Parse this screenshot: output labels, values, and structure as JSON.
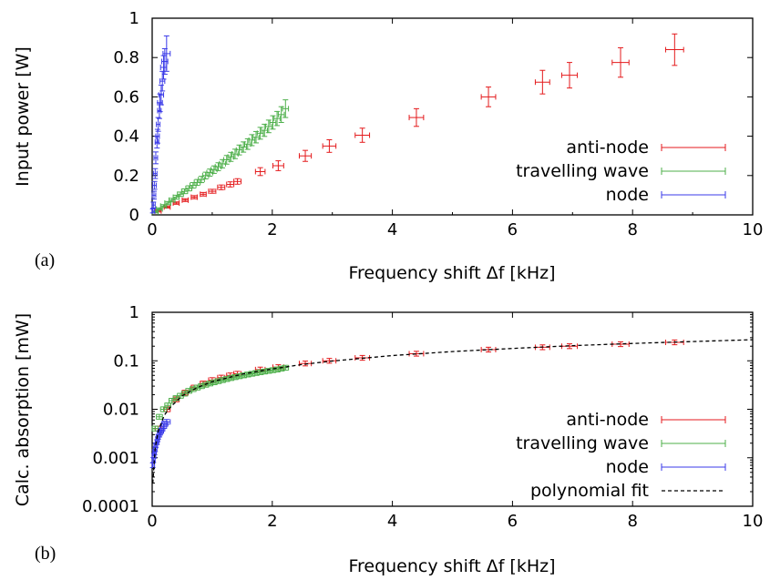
{
  "chart_data": [
    {
      "type": "scatter",
      "panel_label": "(a)",
      "xlabel": "Frequency shift Δf [kHz]",
      "ylabel": "Input power [W]",
      "xlim": [
        0,
        10
      ],
      "ylim": [
        0,
        1
      ],
      "yscale": "linear",
      "xticks": [
        "0",
        "2",
        "4",
        "6",
        "8",
        "10"
      ],
      "yticks": [
        "0",
        "0.2",
        "0.4",
        "0.6",
        "0.8",
        "1"
      ],
      "grid": false,
      "legend_position": "right",
      "series": [
        {
          "name": "anti-node",
          "color": "#e41a1c",
          "marker": "errorbar",
          "x": [
            0.1,
            0.25,
            0.4,
            0.55,
            0.7,
            0.85,
            1.0,
            1.15,
            1.3,
            1.42,
            1.8,
            2.1,
            2.55,
            2.95,
            3.5,
            4.4,
            5.6,
            6.5,
            6.95,
            7.8,
            8.7
          ],
          "y": [
            0.02,
            0.04,
            0.06,
            0.075,
            0.09,
            0.105,
            0.12,
            0.14,
            0.155,
            0.17,
            0.22,
            0.25,
            0.3,
            0.35,
            0.405,
            0.495,
            0.6,
            0.675,
            0.71,
            0.775,
            0.84
          ],
          "xerr": [
            0.05,
            0.05,
            0.05,
            0.05,
            0.05,
            0.05,
            0.06,
            0.06,
            0.06,
            0.06,
            0.08,
            0.09,
            0.1,
            0.11,
            0.12,
            0.12,
            0.12,
            0.12,
            0.13,
            0.14,
            0.15
          ],
          "yerr": [
            0.005,
            0.005,
            0.006,
            0.007,
            0.008,
            0.009,
            0.01,
            0.012,
            0.013,
            0.014,
            0.02,
            0.025,
            0.028,
            0.032,
            0.036,
            0.045,
            0.05,
            0.06,
            0.065,
            0.075,
            0.08
          ]
        },
        {
          "name": "travelling wave",
          "color": "#4daf4a",
          "marker": "errorbar",
          "x": [
            0.05,
            0.12,
            0.19,
            0.26,
            0.33,
            0.4,
            0.47,
            0.54,
            0.61,
            0.68,
            0.75,
            0.82,
            0.89,
            0.96,
            1.03,
            1.1,
            1.17,
            1.24,
            1.31,
            1.38,
            1.45,
            1.52,
            1.59,
            1.66,
            1.73,
            1.8,
            1.87,
            1.94,
            2.01,
            2.08,
            2.15,
            2.22
          ],
          "y": [
            0.015,
            0.03,
            0.045,
            0.06,
            0.075,
            0.09,
            0.105,
            0.12,
            0.135,
            0.15,
            0.165,
            0.18,
            0.2,
            0.215,
            0.23,
            0.245,
            0.26,
            0.28,
            0.295,
            0.31,
            0.33,
            0.345,
            0.36,
            0.38,
            0.395,
            0.415,
            0.43,
            0.45,
            0.47,
            0.49,
            0.51,
            0.54
          ],
          "xerr": [
            0.05,
            0.05,
            0.05,
            0.05,
            0.05,
            0.05,
            0.05,
            0.05,
            0.05,
            0.05,
            0.05,
            0.05,
            0.05,
            0.05,
            0.05,
            0.05,
            0.05,
            0.05,
            0.05,
            0.05,
            0.05,
            0.05,
            0.05,
            0.05,
            0.05,
            0.05,
            0.05,
            0.05,
            0.05,
            0.05,
            0.05,
            0.05
          ],
          "yerr": [
            0.005,
            0.006,
            0.007,
            0.008,
            0.009,
            0.01,
            0.011,
            0.012,
            0.013,
            0.014,
            0.015,
            0.016,
            0.017,
            0.018,
            0.019,
            0.02,
            0.021,
            0.022,
            0.023,
            0.024,
            0.025,
            0.026,
            0.027,
            0.028,
            0.029,
            0.03,
            0.031,
            0.032,
            0.034,
            0.036,
            0.04,
            0.045
          ]
        },
        {
          "name": "node",
          "color": "#3a3ae8",
          "marker": "errorbar",
          "x": [
            0.01,
            0.02,
            0.03,
            0.04,
            0.05,
            0.06,
            0.08,
            0.09,
            0.1,
            0.12,
            0.13,
            0.15,
            0.17,
            0.19,
            0.21,
            0.24
          ],
          "y": [
            0.02,
            0.05,
            0.1,
            0.15,
            0.21,
            0.29,
            0.37,
            0.4,
            0.46,
            0.53,
            0.57,
            0.61,
            0.68,
            0.75,
            0.78,
            0.82
          ],
          "xerr": [
            0.03,
            0.03,
            0.03,
            0.03,
            0.03,
            0.03,
            0.03,
            0.03,
            0.03,
            0.03,
            0.04,
            0.04,
            0.04,
            0.05,
            0.05,
            0.06
          ],
          "yerr": [
            0.01,
            0.015,
            0.02,
            0.02,
            0.025,
            0.03,
            0.03,
            0.035,
            0.035,
            0.04,
            0.045,
            0.05,
            0.05,
            0.06,
            0.065,
            0.09
          ]
        }
      ]
    },
    {
      "type": "scatter",
      "panel_label": "(b)",
      "xlabel": "Frequency shift Δf [kHz]",
      "ylabel": "Calc. absorption [mW]",
      "xlim": [
        0,
        10
      ],
      "ylim": [
        0.0001,
        1
      ],
      "yscale": "log",
      "xticks": [
        "0",
        "2",
        "4",
        "6",
        "8",
        "10"
      ],
      "yticks": [
        "0.0001",
        "0.001",
        "0.01",
        "0.1",
        "1"
      ],
      "grid": false,
      "legend_position": "right",
      "series": [
        {
          "name": "anti-node",
          "color": "#e41a1c",
          "marker": "errorbar",
          "x": [
            0.1,
            0.25,
            0.4,
            0.55,
            0.7,
            0.85,
            1.0,
            1.15,
            1.3,
            1.42,
            1.8,
            2.1,
            2.55,
            2.95,
            3.5,
            4.4,
            5.6,
            6.5,
            6.95,
            7.8,
            8.7
          ],
          "y": [
            0.004,
            0.01,
            0.016,
            0.022,
            0.028,
            0.034,
            0.04,
            0.045,
            0.05,
            0.054,
            0.066,
            0.074,
            0.088,
            0.1,
            0.115,
            0.14,
            0.17,
            0.19,
            0.2,
            0.22,
            0.24
          ],
          "xerr": [
            0.05,
            0.05,
            0.05,
            0.05,
            0.05,
            0.05,
            0.06,
            0.06,
            0.06,
            0.06,
            0.08,
            0.09,
            0.1,
            0.11,
            0.12,
            0.12,
            0.12,
            0.12,
            0.13,
            0.14,
            0.15
          ]
        },
        {
          "name": "travelling wave",
          "color": "#4daf4a",
          "marker": "errorbar",
          "x": [
            0.05,
            0.12,
            0.19,
            0.26,
            0.33,
            0.4,
            0.47,
            0.54,
            0.61,
            0.68,
            0.75,
            0.82,
            0.89,
            0.96,
            1.03,
            1.1,
            1.17,
            1.24,
            1.31,
            1.38,
            1.45,
            1.52,
            1.59,
            1.66,
            1.73,
            1.8,
            1.87,
            1.94,
            2.01,
            2.08,
            2.15,
            2.22
          ],
          "y": [
            0.004,
            0.007,
            0.01,
            0.012,
            0.015,
            0.017,
            0.019,
            0.021,
            0.024,
            0.026,
            0.028,
            0.03,
            0.032,
            0.034,
            0.036,
            0.038,
            0.04,
            0.042,
            0.044,
            0.046,
            0.048,
            0.05,
            0.052,
            0.054,
            0.056,
            0.058,
            0.06,
            0.062,
            0.064,
            0.066,
            0.069,
            0.072
          ],
          "xerr": [
            0.05,
            0.05,
            0.05,
            0.05,
            0.05,
            0.05,
            0.05,
            0.05,
            0.05,
            0.05,
            0.05,
            0.05,
            0.05,
            0.05,
            0.05,
            0.05,
            0.05,
            0.05,
            0.05,
            0.05,
            0.05,
            0.05,
            0.05,
            0.05,
            0.05,
            0.05,
            0.05,
            0.05,
            0.05,
            0.05,
            0.05,
            0.05
          ]
        },
        {
          "name": "node",
          "color": "#3a3ae8",
          "marker": "errorbar",
          "x": [
            0.01,
            0.02,
            0.03,
            0.04,
            0.05,
            0.06,
            0.08,
            0.09,
            0.1,
            0.12,
            0.13,
            0.15,
            0.17,
            0.19,
            0.21,
            0.24
          ],
          "y": [
            0.0007,
            0.0009,
            0.0011,
            0.0013,
            0.0015,
            0.0018,
            0.0021,
            0.0024,
            0.0027,
            0.003,
            0.0033,
            0.0036,
            0.004,
            0.0045,
            0.005,
            0.0055
          ],
          "xerr": [
            0.03,
            0.03,
            0.03,
            0.03,
            0.03,
            0.03,
            0.03,
            0.03,
            0.03,
            0.03,
            0.04,
            0.04,
            0.04,
            0.05,
            0.05,
            0.06
          ]
        },
        {
          "name": "polynomial fit",
          "color": "#000000",
          "marker": "dashed-line",
          "x": [
            0.01,
            0.05,
            0.1,
            0.2,
            0.3,
            0.5,
            0.75,
            1.0,
            1.5,
            2.0,
            2.5,
            3.0,
            4.0,
            5.0,
            6.0,
            7.0,
            8.0,
            9.0,
            10.0
          ],
          "y": [
            0.0003,
            0.0016,
            0.0035,
            0.0075,
            0.011,
            0.019,
            0.028,
            0.037,
            0.053,
            0.068,
            0.084,
            0.099,
            0.128,
            0.155,
            0.18,
            0.205,
            0.228,
            0.25,
            0.272
          ]
        }
      ]
    }
  ]
}
